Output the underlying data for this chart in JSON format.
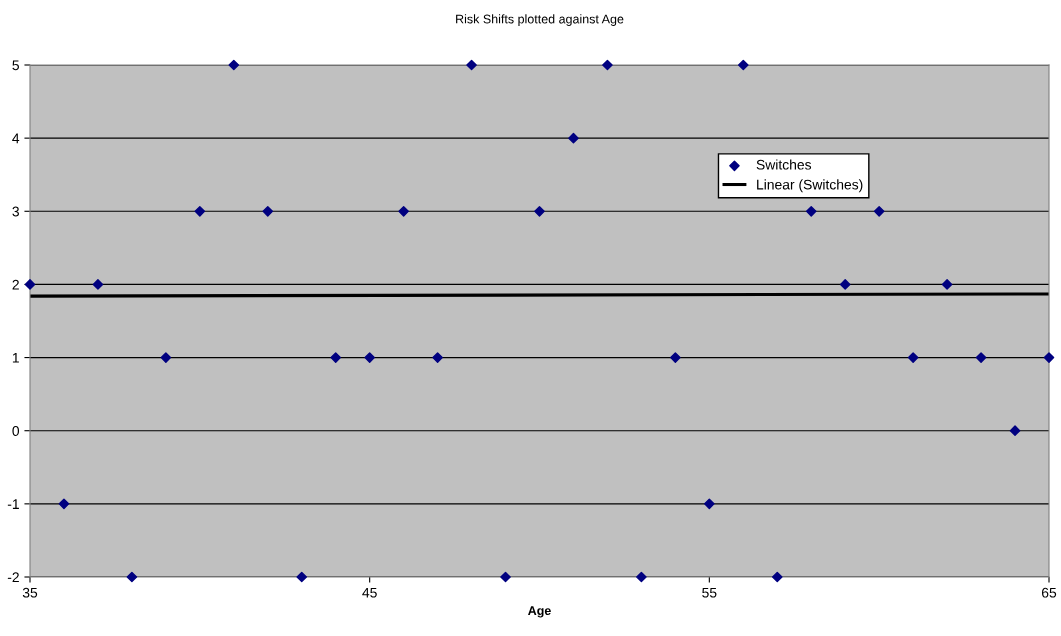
{
  "chart_data": {
    "type": "scatter",
    "title": "Risk Shifts plotted against Age",
    "xlabel": "Age",
    "xlim": [
      35,
      65
    ],
    "xticks": [
      35,
      45,
      55,
      65
    ],
    "ylim": [
      -2,
      5
    ],
    "yticks": [
      -2,
      -1,
      0,
      1,
      2,
      3,
      4,
      5
    ],
    "grid": "y",
    "legend": "top right",
    "series": [
      {
        "name": "Switches",
        "marker": "diamond",
        "color": "#000080",
        "x": [
          35,
          36,
          37,
          38,
          39,
          40,
          41,
          42,
          43,
          44,
          45,
          46,
          47,
          48,
          49,
          50,
          51,
          52,
          53,
          54,
          55,
          56,
          57,
          58,
          59,
          60,
          61,
          62,
          63,
          64,
          65
        ],
        "values": [
          2,
          -1,
          2,
          -2,
          1,
          3,
          5,
          3,
          -2,
          1,
          1,
          3,
          1,
          5,
          -2,
          3,
          4,
          5,
          -2,
          1,
          -1,
          5,
          -2,
          3,
          2,
          3,
          1,
          2,
          1,
          0,
          1
        ]
      },
      {
        "name": "Linear (Switches)",
        "type": "line",
        "color": "#000000",
        "line_style": "solid",
        "x": [
          35,
          65
        ],
        "values": [
          1.84,
          1.87
        ]
      }
    ]
  }
}
